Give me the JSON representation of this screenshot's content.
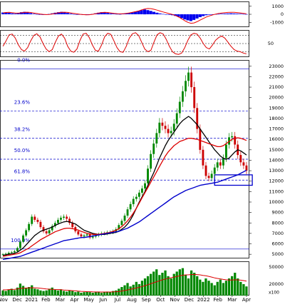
{
  "chart_data": [
    {
      "type": "bar",
      "panel": "macd",
      "y_ticks": [
        "1000",
        "0",
        "-1000"
      ],
      "ylim": [
        -1600,
        1600
      ],
      "colors": {
        "histogram": "#0000ee",
        "signal": "#ee0000"
      },
      "histogram": [
        220,
        240,
        180,
        120,
        80,
        160,
        260,
        300,
        220,
        140,
        60,
        20,
        -40,
        -80,
        -60,
        40,
        120,
        200,
        260,
        300,
        240,
        160,
        80,
        20,
        -20,
        -40,
        -80,
        -60,
        -20,
        40,
        120,
        200,
        260,
        220,
        160,
        100,
        60,
        40,
        20,
        60,
        120,
        180,
        260,
        340,
        420,
        520,
        600,
        520,
        420,
        300,
        200,
        100,
        40,
        0,
        -60,
        -120,
        -200,
        -320,
        -480,
        -640,
        -760,
        -840,
        -700,
        -520,
        -360,
        -220,
        -120,
        -60,
        -20,
        20,
        40,
        60,
        80,
        100,
        120,
        100,
        80,
        60,
        40,
        20
      ],
      "signal": [
        180,
        220,
        240,
        200,
        160,
        140,
        180,
        240,
        260,
        220,
        160,
        100,
        40,
        -10,
        -40,
        -20,
        40,
        110,
        180,
        240,
        260,
        230,
        170,
        110,
        50,
        0,
        -40,
        -60,
        -50,
        -10,
        60,
        140,
        210,
        240,
        220,
        170,
        120,
        80,
        60,
        70,
        110,
        170,
        240,
        320,
        420,
        540,
        660,
        720,
        700,
        620,
        520,
        400,
        280,
        180,
        80,
        -20,
        -160,
        -340,
        -560,
        -800,
        -1000,
        -1120,
        -1080,
        -920,
        -720,
        -520,
        -340,
        -200,
        -80,
        20,
        100,
        160,
        200,
        230,
        250,
        240,
        210,
        170,
        120,
        60
      ]
    },
    {
      "type": "line",
      "panel": "oscillator",
      "y_ticks": [
        "50"
      ],
      "ylim": [
        0,
        100
      ],
      "reference_lines": [
        80,
        50,
        20
      ],
      "series": [
        {
          "values": [
            40,
            60,
            82,
            85,
            70,
            45,
            28,
            22,
            35,
            60,
            80,
            86,
            75,
            50,
            30,
            20,
            28,
            55,
            78,
            85,
            70,
            40,
            22,
            18,
            30,
            62,
            85,
            88,
            72,
            45,
            25,
            22,
            45,
            75,
            88,
            84,
            60,
            35,
            20,
            18,
            40,
            70,
            86,
            90,
            80,
            55,
            30,
            20,
            25,
            55,
            82,
            90,
            85,
            65,
            40,
            20,
            12,
            10,
            15,
            35,
            62,
            82,
            88,
            85,
            70,
            50,
            35,
            30,
            45,
            62,
            72,
            78,
            70,
            55,
            40,
            28,
            22,
            20,
            15,
            12
          ]
        }
      ]
    },
    {
      "type": "candlestick",
      "panel": "price",
      "x_tick_labels": [
        "Nov",
        "Dec",
        "2021",
        "Feb",
        "Mar",
        "Apr",
        "May",
        "Jun",
        "Jul",
        "Aug",
        "Sep",
        "Oct",
        "Nov",
        "Dec",
        "2022",
        "Feb",
        "Mar",
        "Apr"
      ],
      "y_ticks": [
        "23000",
        "22000",
        "21000",
        "20000",
        "19000",
        "18000",
        "17000",
        "16000",
        "15000",
        "14000",
        "13000",
        "12000",
        "11000",
        "10000",
        "9000",
        "8000",
        "7000",
        "6000",
        "5000"
      ],
      "ylim": [
        4600,
        23600
      ],
      "fibonacci_levels": [
        {
          "label": "0.0%",
          "price": 22750
        },
        {
          "label": "23.6%",
          "price": 18700
        },
        {
          "label": "38.2%",
          "price": 16100
        },
        {
          "label": "50.0%",
          "price": 14100
        },
        {
          "label": "61.8%",
          "price": 12100
        },
        {
          "label": "100.0%",
          "price": 5500
        }
      ],
      "support_box": {
        "from_index": 73,
        "to_index": 86,
        "low": 11600,
        "high": 12600
      },
      "close": [
        5000,
        5050,
        5150,
        5200,
        5300,
        5600,
        6200,
        6800,
        7300,
        7900,
        8600,
        8300,
        8100,
        7600,
        7200,
        7000,
        7300,
        7700,
        8000,
        8300,
        8500,
        8600,
        8400,
        8000,
        7600,
        7200,
        6900,
        6700,
        6800,
        6900,
        6600,
        6700,
        6800,
        6900,
        7000,
        7000,
        7100,
        7100,
        7200,
        7400,
        7800,
        8200,
        8700,
        9300,
        9800,
        10300,
        10500,
        10900,
        11300,
        11800,
        13200,
        14600,
        15600,
        16600,
        17600,
        17300,
        17000,
        16600,
        16800,
        17500,
        18500,
        19600,
        20600,
        21600,
        22400,
        21000,
        19000,
        17000,
        15000,
        13500,
        12500,
        12300,
        12700,
        13300,
        13800,
        13500,
        14200,
        15500,
        16200,
        16300,
        15500,
        14500,
        13800,
        13500,
        13000
      ],
      "series": [
        {
          "type": "line",
          "color": "#000000",
          "values": [
            4900,
            4950,
            5000,
            5050,
            5100,
            5200,
            5400,
            5600,
            5900,
            6200,
            6500,
            6800,
            7000,
            7200,
            7300,
            7400,
            7500,
            7600,
            7750,
            7900,
            8000,
            8100,
            8150,
            8100,
            8000,
            7900,
            7700,
            7500,
            7300,
            7200,
            7100,
            7000,
            6950,
            6900,
            6900,
            6900,
            6950,
            7000,
            7050,
            7100,
            7200,
            7400,
            7600,
            7900,
            8300,
            8800,
            9400,
            10000,
            10500,
            11000,
            11600,
            12200,
            12800,
            13500,
            14200,
            14800,
            15400,
            15900,
            16300,
            16700,
            17100,
            17500,
            17800,
            18000,
            18200,
            18000,
            17700,
            17400,
            17000,
            16600,
            16200,
            15800,
            15400,
            15000,
            14700,
            14400,
            14200,
            14100,
            14200,
            14500,
            14800,
            15000,
            14900,
            14700,
            14500
          ]
        },
        {
          "type": "line",
          "color": "#dd0000",
          "values": [
            4800,
            4850,
            4900,
            4950,
            5000,
            5050,
            5150,
            5300,
            5450,
            5600,
            5800,
            6000,
            6200,
            6400,
            6550,
            6700,
            6850,
            7000,
            7150,
            7250,
            7350,
            7450,
            7500,
            7500,
            7450,
            7400,
            7300,
            7200,
            7100,
            7000,
            6950,
            6900,
            6900,
            6900,
            6950,
            7000,
            7050,
            7100,
            7200,
            7300,
            7450,
            7650,
            7900,
            8200,
            8550,
            8950,
            9400,
            9900,
            10400,
            10900,
            11400,
            11900,
            12400,
            12900,
            13400,
            13900,
            14400,
            14800,
            15100,
            15400,
            15600,
            15800,
            15900,
            16000,
            16100,
            16100,
            16050,
            16000,
            15900,
            15800,
            15700,
            15600,
            15500,
            15400,
            15300,
            15300,
            15400,
            15600,
            15800,
            16000,
            16100,
            16150,
            16100,
            16000,
            15900
          ]
        },
        {
          "type": "line",
          "color": "#0000cc",
          "values": [
            4500,
            4550,
            4600,
            4650,
            4700,
            4750,
            4800,
            4900,
            5000,
            5100,
            5200,
            5300,
            5400,
            5500,
            5600,
            5700,
            5800,
            5900,
            6000,
            6100,
            6200,
            6300,
            6350,
            6400,
            6450,
            6500,
            6550,
            6600,
            6600,
            6650,
            6700,
            6750,
            6800,
            6850,
            6900,
            6950,
            7000,
            7050,
            7100,
            7150,
            7200,
            7300,
            7400,
            7500,
            7650,
            7800,
            7950,
            8100,
            8300,
            8500,
            8700,
            8900,
            9100,
            9300,
            9500,
            9700,
            9900,
            10100,
            10300,
            10500,
            10650,
            10800,
            10950,
            11100,
            11200,
            11300,
            11400,
            11500,
            11600,
            11650,
            11700,
            11750,
            11800,
            11850,
            11900,
            12000,
            12100,
            12200,
            12300,
            12400,
            12500,
            12600,
            12750,
            12900,
            13050
          ]
        }
      ]
    },
    {
      "type": "bar",
      "panel": "volume",
      "unit_label": "x100",
      "y_ticks": [
        "50000",
        "20000"
      ],
      "ylim": [
        0,
        60000
      ],
      "colors": {
        "bars": "#008800",
        "ma": "#dd0000"
      },
      "values": [
        9000,
        8000,
        10000,
        12000,
        9500,
        14000,
        21000,
        17000,
        13000,
        15000,
        18000,
        12000,
        11000,
        9000,
        8000,
        9000,
        12000,
        14000,
        10000,
        9000,
        11000,
        8000,
        7000,
        9000,
        8000,
        6000,
        7000,
        5000,
        6000,
        7000,
        6000,
        5000,
        6000,
        7000,
        5000,
        6000,
        7000,
        6000,
        8000,
        9000,
        12000,
        15000,
        18000,
        22000,
        16000,
        19000,
        24000,
        20000,
        26000,
        30000,
        34000,
        38000,
        42000,
        46000,
        36000,
        40000,
        44000,
        34000,
        30000,
        38000,
        42000,
        46000,
        48000,
        36000,
        30000,
        44000,
        40000,
        34000,
        28000,
        24000,
        30000,
        26000,
        22000,
        18000,
        24000,
        28000,
        22000,
        26000,
        30000,
        34000,
        40000,
        30000,
        24000,
        20000,
        16000
      ],
      "ma_values": [
        10000,
        10000,
        10500,
        10800,
        11000,
        11500,
        12500,
        13000,
        13200,
        13500,
        13800,
        13600,
        13200,
        12800,
        12200,
        11600,
        11200,
        11000,
        10800,
        10600,
        10200,
        9800,
        9400,
        9000,
        8600,
        8200,
        7800,
        7400,
        7100,
        6900,
        6700,
        6500,
        6400,
        6300,
        6200,
        6200,
        6200,
        6300,
        6500,
        6800,
        7300,
        8000,
        8900,
        9900,
        11000,
        12100,
        13300,
        14500,
        15900,
        17400,
        19000,
        20700,
        22500,
        24300,
        25900,
        27500,
        29000,
        30300,
        31300,
        32400,
        33500,
        34600,
        35600,
        36200,
        36400,
        36800,
        37000,
        36800,
        36200,
        35400,
        34600,
        33600,
        32400,
        31000,
        30000,
        29200,
        28300,
        27600,
        27200,
        27200,
        27600,
        27500,
        27000,
        26200,
        25200
      ]
    }
  ]
}
